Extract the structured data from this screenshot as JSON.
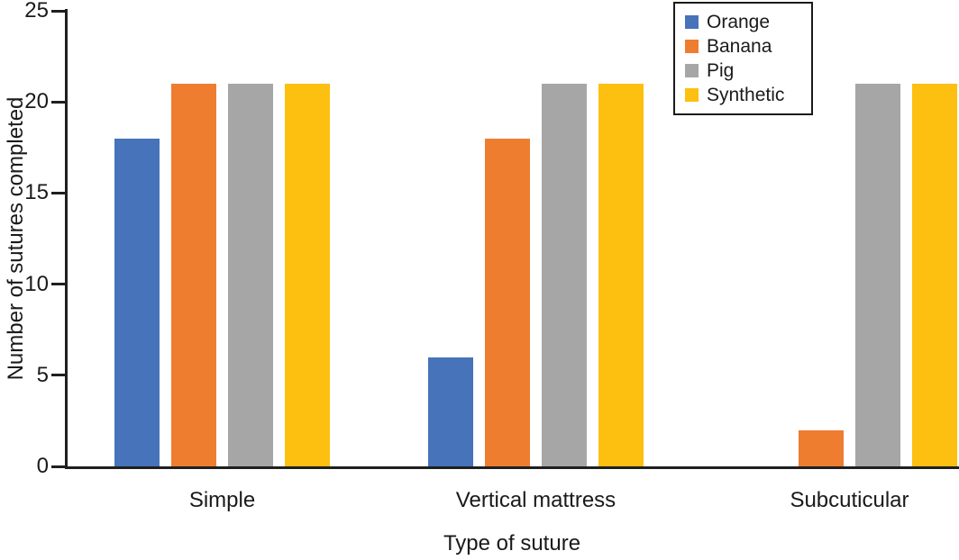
{
  "chart_data": {
    "type": "bar",
    "title": "",
    "categories": [
      "Simple",
      "Vertical mattress",
      "Subcuticular"
    ],
    "series": [
      {
        "name": "Orange",
        "color": "#4673B9",
        "values": [
          18,
          6,
          0
        ]
      },
      {
        "name": "Banana",
        "color": "#EE7D30",
        "values": [
          21,
          18,
          2
        ]
      },
      {
        "name": "Pig",
        "color": "#A6A6A6",
        "values": [
          21,
          21,
          21
        ]
      },
      {
        "name": "Synthetic",
        "color": "#FDC010",
        "values": [
          21,
          21,
          21
        ]
      }
    ],
    "xlabel": "Type of suture",
    "ylabel": "Number of sutures completed",
    "ylim": [
      0,
      25
    ],
    "yticks": [
      0,
      5,
      10,
      15,
      20,
      25
    ],
    "grid": false,
    "legend_position": "top-right"
  }
}
